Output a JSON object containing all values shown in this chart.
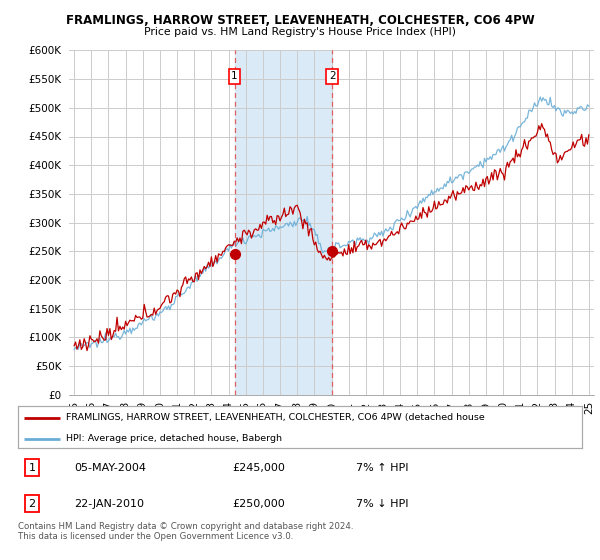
{
  "title1": "FRAMLINGS, HARROW STREET, LEAVENHEATH, COLCHESTER, CO6 4PW",
  "title2": "Price paid vs. HM Land Registry's House Price Index (HPI)",
  "xlim_start": 1994.7,
  "xlim_end": 2025.3,
  "ylim": [
    0,
    600000
  ],
  "yticks": [
    0,
    50000,
    100000,
    150000,
    200000,
    250000,
    300000,
    350000,
    400000,
    450000,
    500000,
    550000,
    600000
  ],
  "sale1_year": 2004.35,
  "sale1_price": 245000,
  "sale1_label": "1",
  "sale2_year": 2010.05,
  "sale2_price": 250000,
  "sale2_label": "2",
  "hpi_color": "#6aaed6",
  "price_color": "#c00000",
  "shade_color": "#daeaf7",
  "legend_line1": "FRAMLINGS, HARROW STREET, LEAVENHEATH, COLCHESTER, CO6 4PW (detached house",
  "legend_line2": "HPI: Average price, detached house, Babergh",
  "table_row1": [
    "1",
    "05-MAY-2004",
    "£245,000",
    "7% ↑ HPI"
  ],
  "table_row2": [
    "2",
    "22-JAN-2010",
    "£250,000",
    "7% ↓ HPI"
  ],
  "footnote": "Contains HM Land Registry data © Crown copyright and database right 2024.\nThis data is licensed under the Open Government Licence v3.0.",
  "grid_color": "#cccccc"
}
